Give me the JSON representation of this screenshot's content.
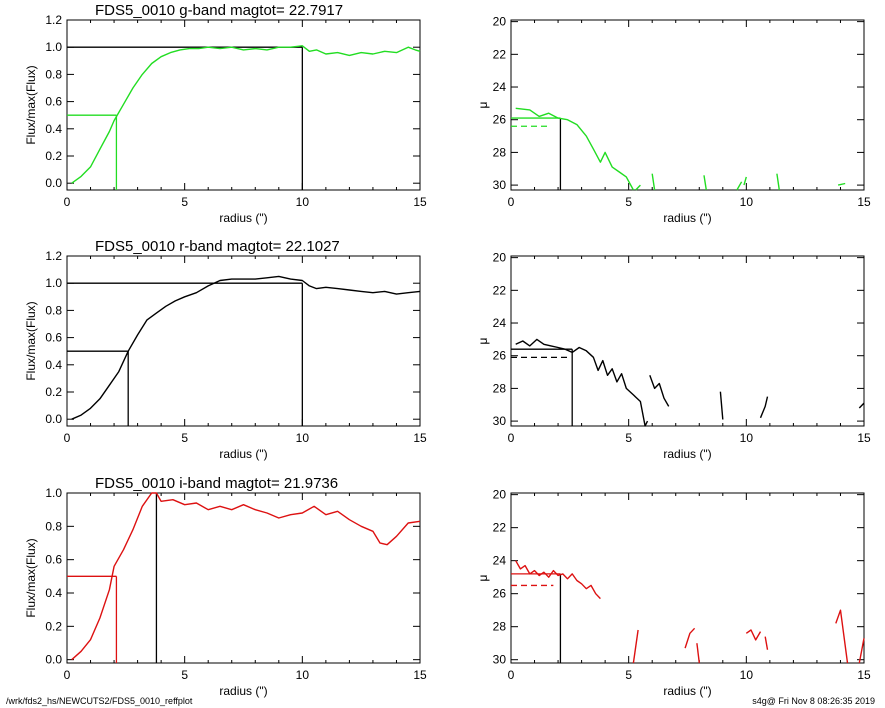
{
  "footer": {
    "left": "/wrk/fds2_hs/NEWCUTS2/FDS5_0010_reffplot",
    "right": "s4g@  Fri Nov  8 08:26:35 2019"
  },
  "chart_data": [
    {
      "type": "line",
      "title": "FDS5_0010 g-band  magtot=      22.7917",
      "xlabel": "radius (\")",
      "ylabel": "Flux/max(Flux)",
      "xlim": [
        0,
        15
      ],
      "ylim": [
        -0.05,
        1.2
      ],
      "xticks": [
        0,
        5,
        10,
        15
      ],
      "yticks": [
        0.0,
        0.2,
        0.4,
        0.6,
        0.8,
        1.0,
        1.2
      ],
      "ytick_labels": [
        "0.0",
        "0.2",
        "0.4",
        "0.6",
        "0.8",
        "1.0",
        "1.2"
      ],
      "color": "#22dd22",
      "series": [
        {
          "x": [
            0.2,
            0.6,
            1.0,
            1.4,
            1.8,
            2.0,
            2.4,
            2.8,
            3.2,
            3.6,
            4.0,
            4.4,
            4.8,
            5.2,
            5.6,
            6.0,
            6.5,
            7.0,
            7.5,
            8.0,
            8.5,
            9.0,
            9.5,
            10.0,
            10.3,
            10.6,
            11.0,
            11.5,
            12.0,
            12.5,
            13.0,
            13.5,
            14.0,
            14.5,
            14.8,
            15.0
          ],
          "y": [
            0.0,
            0.05,
            0.12,
            0.25,
            0.38,
            0.46,
            0.58,
            0.7,
            0.8,
            0.88,
            0.93,
            0.96,
            0.98,
            0.99,
            0.99,
            1.0,
            0.99,
            1.0,
            0.98,
            0.99,
            0.98,
            1.0,
            1.0,
            1.01,
            0.97,
            0.98,
            0.95,
            0.96,
            0.94,
            0.96,
            0.95,
            0.97,
            0.96,
            1.0,
            0.98,
            0.97
          ]
        }
      ],
      "guides": [
        {
          "type": "h",
          "y": 0.5,
          "x0": 0,
          "x1": 2.1,
          "color": "#22dd22"
        },
        {
          "type": "v",
          "x": 2.1,
          "y0": -0.05,
          "y1": 0.5,
          "color": "#22dd22"
        },
        {
          "type": "h",
          "y": 1.0,
          "x0": 0,
          "x1": 10.0,
          "color": "#000000"
        },
        {
          "type": "v",
          "x": 10.0,
          "y0": -0.05,
          "y1": 1.0,
          "color": "#000000"
        }
      ]
    },
    {
      "type": "line",
      "title": "",
      "xlabel": "radius (\")",
      "ylabel": "μ",
      "xlim": [
        0,
        15
      ],
      "ylim": [
        30.3,
        19.9
      ],
      "xticks": [
        0,
        5,
        10,
        15
      ],
      "yticks": [
        20,
        22,
        24,
        26,
        28,
        30
      ],
      "ytick_labels": [
        "20",
        "22",
        "24",
        "26",
        "28",
        "30"
      ],
      "color": "#22dd22",
      "series": [
        {
          "x": [
            0.2,
            0.8,
            1.2,
            1.6,
            2.0,
            2.4,
            2.8,
            3.2,
            3.5,
            3.8,
            4.0,
            4.3,
            4.6,
            4.9,
            5.2
          ],
          "y": [
            25.3,
            25.4,
            25.8,
            25.6,
            25.9,
            26.0,
            26.3,
            27.0,
            27.8,
            28.6,
            28.0,
            28.9,
            29.2,
            29.5,
            30.3
          ]
        },
        {
          "x": [
            5.3,
            5.5
          ],
          "y": [
            30.3,
            30.0
          ]
        },
        {
          "x": [
            6.0,
            6.1
          ],
          "y": [
            29.3,
            30.3
          ]
        },
        {
          "x": [
            8.2,
            8.3
          ],
          "y": [
            29.4,
            30.3
          ]
        },
        {
          "x": [
            9.6,
            9.8
          ],
          "y": [
            30.3,
            29.8
          ]
        },
        {
          "x": [
            9.9,
            10.0
          ],
          "y": [
            30.0,
            29.5
          ]
        },
        {
          "x": [
            11.3,
            11.4
          ],
          "y": [
            29.3,
            30.3
          ]
        },
        {
          "x": [
            13.9,
            14.2
          ],
          "y": [
            30.0,
            29.9
          ]
        }
      ],
      "guides": [
        {
          "type": "h",
          "y": 25.9,
          "x0": 0,
          "x1": 2.1,
          "color": "#22dd22"
        },
        {
          "type": "h",
          "y": 26.4,
          "x0": 0,
          "x1": 1.6,
          "color": "#22dd22",
          "dash": true
        },
        {
          "type": "v",
          "x": 2.1,
          "y0": 30.3,
          "y1": 25.9,
          "color": "#000000"
        }
      ]
    },
    {
      "type": "line",
      "title": "FDS5_0010 r-band  magtot=      22.1027",
      "xlabel": "radius (\")",
      "ylabel": "Flux/max(Flux)",
      "xlim": [
        0,
        15
      ],
      "ylim": [
        -0.05,
        1.2
      ],
      "xticks": [
        0,
        5,
        10,
        15
      ],
      "yticks": [
        0.0,
        0.2,
        0.4,
        0.6,
        0.8,
        1.0,
        1.2
      ],
      "ytick_labels": [
        "0.0",
        "0.2",
        "0.4",
        "0.6",
        "0.8",
        "1.0",
        "1.2"
      ],
      "color": "#000000",
      "series": [
        {
          "x": [
            0.2,
            0.6,
            1.0,
            1.4,
            1.8,
            2.2,
            2.6,
            3.0,
            3.4,
            3.8,
            4.2,
            4.6,
            5.0,
            5.5,
            6.0,
            6.5,
            7.0,
            7.5,
            8.0,
            8.5,
            9.0,
            9.5,
            10.0,
            10.3,
            10.6,
            11.0,
            11.5,
            12.0,
            12.5,
            13.0,
            13.5,
            14.0,
            14.5,
            15.0
          ],
          "y": [
            0.0,
            0.03,
            0.08,
            0.15,
            0.25,
            0.35,
            0.5,
            0.62,
            0.73,
            0.78,
            0.83,
            0.87,
            0.9,
            0.93,
            0.98,
            1.02,
            1.03,
            1.03,
            1.03,
            1.04,
            1.05,
            1.03,
            1.02,
            0.98,
            0.96,
            0.97,
            0.96,
            0.95,
            0.94,
            0.93,
            0.94,
            0.92,
            0.93,
            0.94
          ]
        }
      ],
      "guides": [
        {
          "type": "h",
          "y": 0.5,
          "x0": 0,
          "x1": 2.6,
          "color": "#000000"
        },
        {
          "type": "v",
          "x": 2.6,
          "y0": -0.05,
          "y1": 0.5,
          "color": "#000000"
        },
        {
          "type": "h",
          "y": 1.0,
          "x0": 0,
          "x1": 10.0,
          "color": "#000000"
        },
        {
          "type": "v",
          "x": 10.0,
          "y0": -0.05,
          "y1": 1.0,
          "color": "#000000"
        }
      ]
    },
    {
      "type": "line",
      "title": "",
      "xlabel": "radius (\")",
      "ylabel": "μ",
      "xlim": [
        0,
        15
      ],
      "ylim": [
        30.3,
        19.9
      ],
      "xticks": [
        0,
        5,
        10,
        15
      ],
      "yticks": [
        20,
        22,
        24,
        26,
        28,
        30
      ],
      "ytick_labels": [
        "20",
        "22",
        "24",
        "26",
        "28",
        "30"
      ],
      "color": "#000000",
      "series": [
        {
          "x": [
            0.2,
            0.5,
            0.8,
            1.1,
            1.4,
            1.7,
            2.0,
            2.3,
            2.6,
            2.9,
            3.2,
            3.5,
            3.7,
            3.9,
            4.1,
            4.3,
            4.5,
            4.7,
            4.9,
            5.2,
            5.5,
            5.7,
            5.8
          ],
          "y": [
            25.3,
            25.1,
            25.4,
            25.0,
            25.3,
            25.4,
            25.5,
            25.6,
            25.8,
            25.5,
            25.7,
            26.1,
            26.9,
            26.3,
            27.2,
            26.8,
            27.6,
            27.1,
            28.0,
            28.4,
            28.8,
            30.3,
            30.0
          ]
        },
        {
          "x": [
            5.9,
            6.1,
            6.3,
            6.5,
            6.7
          ],
          "y": [
            27.2,
            28.0,
            27.7,
            28.6,
            29.1
          ]
        },
        {
          "x": [
            8.9,
            9.0
          ],
          "y": [
            28.2,
            29.9
          ]
        },
        {
          "x": [
            10.6,
            10.8,
            10.9
          ],
          "y": [
            29.8,
            29.1,
            28.5
          ]
        },
        {
          "x": [
            14.8,
            15.0
          ],
          "y": [
            29.2,
            28.9
          ]
        }
      ],
      "guides": [
        {
          "type": "h",
          "y": 25.6,
          "x0": 0,
          "x1": 2.6,
          "color": "#000000"
        },
        {
          "type": "h",
          "y": 26.1,
          "x0": 0,
          "x1": 2.4,
          "color": "#000000",
          "dash": true
        },
        {
          "type": "v",
          "x": 2.6,
          "y0": 30.3,
          "y1": 25.6,
          "color": "#000000"
        }
      ]
    },
    {
      "type": "line",
      "title": "FDS5_0010 i-band  magtot=      21.9736",
      "xlabel": "radius (\")",
      "ylabel": "Flux/max(Flux)",
      "xlim": [
        0,
        15
      ],
      "ylim": [
        -0.02,
        1.0
      ],
      "xticks": [
        0,
        5,
        10,
        15
      ],
      "yticks": [
        0.0,
        0.2,
        0.4,
        0.6,
        0.8,
        1.0
      ],
      "ytick_labels": [
        "0.0",
        "0.2",
        "0.4",
        "0.6",
        "0.8",
        "1.0"
      ],
      "color": "#dd1111",
      "series": [
        {
          "x": [
            0.2,
            0.6,
            1.0,
            1.4,
            1.8,
            2.0,
            2.4,
            2.8,
            3.2,
            3.6,
            3.8,
            4.0,
            4.5,
            5.0,
            5.5,
            6.0,
            6.5,
            7.0,
            7.5,
            8.0,
            8.5,
            9.0,
            9.5,
            10.0,
            10.5,
            11.0,
            11.5,
            12.0,
            12.5,
            13.0,
            13.3,
            13.6,
            14.0,
            14.5,
            15.0
          ],
          "y": [
            0.0,
            0.05,
            0.12,
            0.25,
            0.42,
            0.56,
            0.66,
            0.78,
            0.92,
            1.0,
            1.0,
            0.95,
            0.96,
            0.93,
            0.94,
            0.9,
            0.92,
            0.9,
            0.93,
            0.9,
            0.88,
            0.85,
            0.87,
            0.88,
            0.92,
            0.87,
            0.89,
            0.84,
            0.8,
            0.77,
            0.7,
            0.69,
            0.74,
            0.82,
            0.83
          ]
        }
      ],
      "guides": [
        {
          "type": "h",
          "y": 0.5,
          "x0": 0,
          "x1": 2.1,
          "color": "#dd1111"
        },
        {
          "type": "v",
          "x": 2.1,
          "y0": -0.02,
          "y1": 0.5,
          "color": "#dd1111"
        },
        {
          "type": "v",
          "x": 3.8,
          "y0": -0.02,
          "y1": 1.0,
          "color": "#000000"
        }
      ]
    },
    {
      "type": "line",
      "title": "",
      "xlabel": "radius (\")",
      "ylabel": "μ",
      "xlim": [
        0,
        15
      ],
      "ylim": [
        30.2,
        19.9
      ],
      "xticks": [
        0,
        5,
        10,
        15
      ],
      "yticks": [
        20,
        22,
        24,
        26,
        28,
        30
      ],
      "ytick_labels": [
        "20",
        "22",
        "24",
        "26",
        "28",
        "30"
      ],
      "color": "#dd1111",
      "series": [
        {
          "x": [
            0.2,
            0.4,
            0.6,
            0.8,
            1.0,
            1.2,
            1.4,
            1.6,
            1.8,
            2.0,
            2.2,
            2.4,
            2.6,
            2.8,
            3.0,
            3.2,
            3.4,
            3.6,
            3.8
          ],
          "y": [
            24.0,
            24.5,
            24.3,
            24.8,
            24.6,
            24.9,
            24.7,
            25.0,
            24.6,
            24.9,
            24.8,
            25.1,
            24.8,
            25.2,
            25.4,
            25.7,
            25.5,
            26.0,
            26.3
          ]
        },
        {
          "x": [
            5.2,
            5.4
          ],
          "y": [
            30.2,
            28.2
          ]
        },
        {
          "x": [
            7.4,
            7.6,
            7.8
          ],
          "y": [
            29.3,
            28.4,
            28.1
          ]
        },
        {
          "x": [
            7.9,
            8.0
          ],
          "y": [
            29.0,
            30.2
          ]
        },
        {
          "x": [
            10.0,
            10.2,
            10.4,
            10.6
          ],
          "y": [
            28.4,
            28.2,
            28.8,
            28.3
          ]
        },
        {
          "x": [
            10.8,
            10.9
          ],
          "y": [
            28.6,
            29.4
          ]
        },
        {
          "x": [
            13.8,
            14.0,
            14.3
          ],
          "y": [
            27.8,
            27.0,
            30.2
          ]
        },
        {
          "x": [
            14.8,
            15.0
          ],
          "y": [
            30.2,
            28.7
          ]
        }
      ],
      "guides": [
        {
          "type": "h",
          "y": 24.8,
          "x0": 0,
          "x1": 2.1,
          "color": "#dd1111"
        },
        {
          "type": "h",
          "y": 25.5,
          "x0": 0,
          "x1": 1.8,
          "color": "#dd1111",
          "dash": true
        },
        {
          "type": "v",
          "x": 2.1,
          "y0": 30.2,
          "y1": 24.8,
          "color": "#000000"
        }
      ]
    }
  ]
}
